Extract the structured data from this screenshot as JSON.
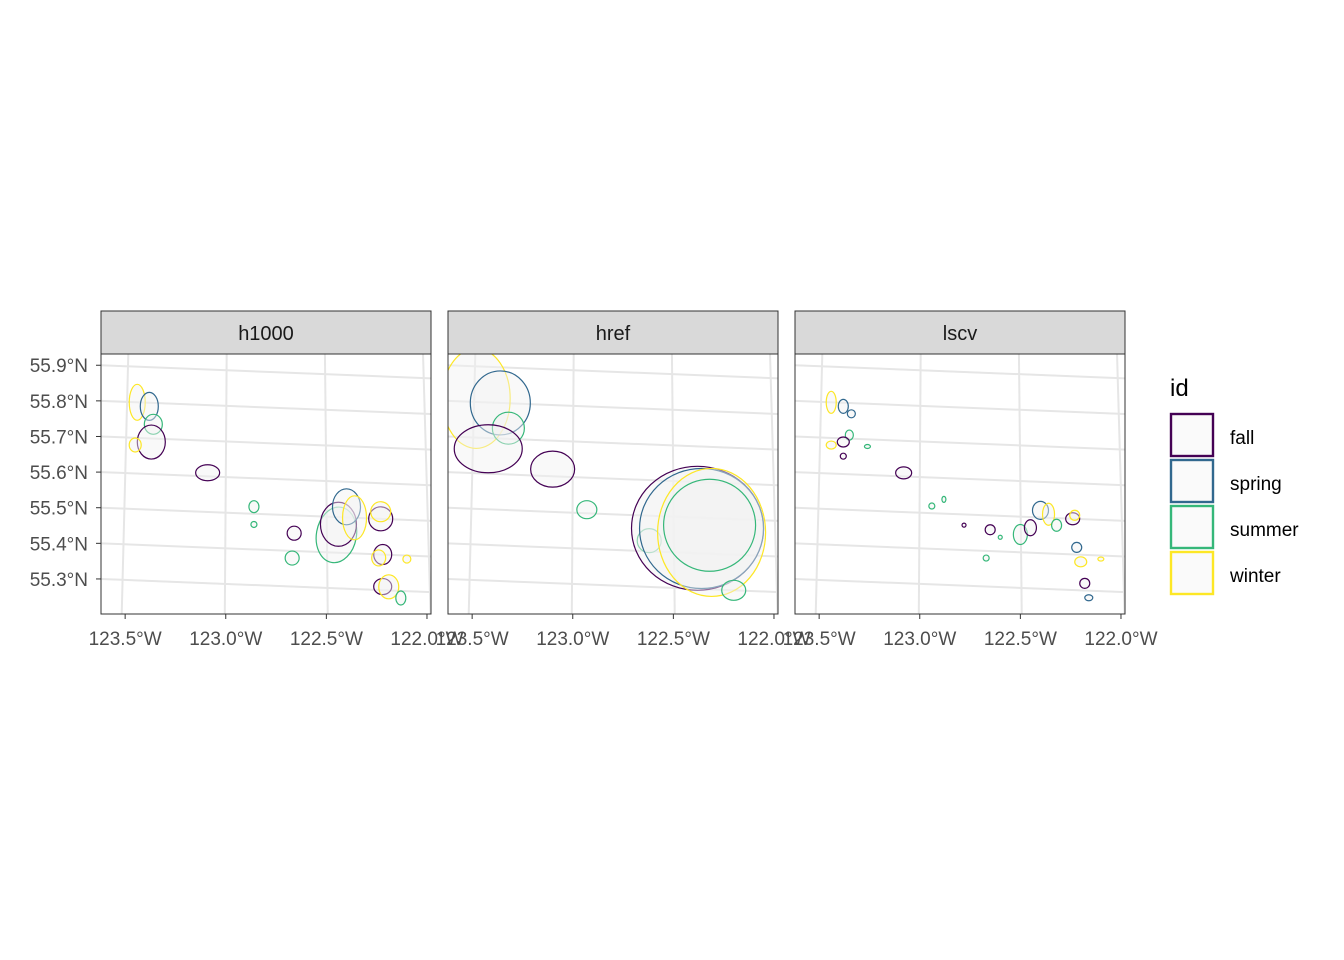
{
  "chart_data": {
    "type": "map",
    "facets": [
      "h1000",
      "href",
      "lscv"
    ],
    "x_ticks": [
      "123.5°W",
      "123.0°W",
      "122.5°W",
      "122.0°W"
    ],
    "x_values": [
      -123.5,
      -123.0,
      -122.5,
      -122.0
    ],
    "y_ticks": [
      "55.9°N",
      "55.8°N",
      "55.7°N",
      "55.6°N",
      "55.5°N",
      "55.4°N",
      "55.3°N"
    ],
    "y_values": [
      55.9,
      55.8,
      55.7,
      55.6,
      55.5,
      55.4,
      55.3
    ],
    "xlim": [
      -123.62,
      -121.98
    ],
    "ylim": [
      55.22,
      55.95
    ],
    "grid": true,
    "legend": {
      "title": "id",
      "position": "right",
      "entries": [
        {
          "label": "fall",
          "color": "#440154"
        },
        {
          "label": "spring",
          "color": "#31688e"
        },
        {
          "label": "summer",
          "color": "#35b779"
        },
        {
          "label": "winter",
          "color": "#fde725"
        }
      ]
    },
    "series": [
      {
        "name": "fall",
        "color": "#440154"
      },
      {
        "name": "spring",
        "color": "#31688e"
      },
      {
        "name": "summer",
        "color": "#35b779"
      },
      {
        "name": "winter",
        "color": "#fde725"
      }
    ]
  }
}
